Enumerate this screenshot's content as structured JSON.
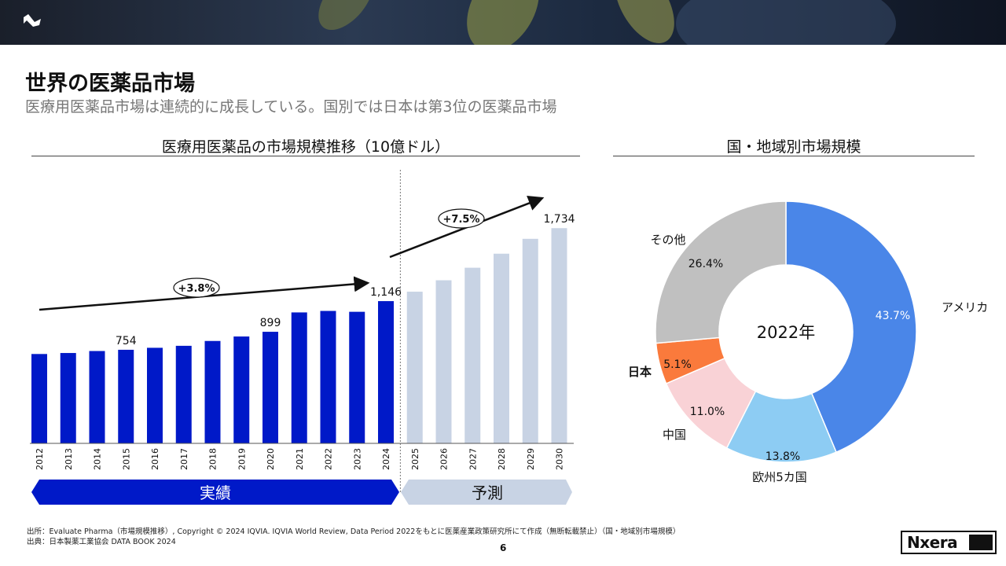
{
  "header": {
    "title": "世界の医薬品市場",
    "subtitle": "医療用医薬品市場は連続的に成長している。国別では日本は第3位の医薬品市場"
  },
  "left_chart_title": "医療用医薬品の市場規模推移（10億ドル）",
  "right_chart_title": "国・地域別市場規模",
  "colors": {
    "actual": "#0019c8",
    "forecast": "#c8d3e4",
    "usa": "#4a86e8",
    "europe": "#8dccf3",
    "china": "#f9d2d6",
    "japan": "#fa7a3c",
    "other": "#c0c0c0"
  },
  "chart_data": [
    {
      "type": "bar",
      "title": "医療用医薬品の市場規模推移（10億ドル）",
      "categories": [
        "2012",
        "2013",
        "2014",
        "2015",
        "2016",
        "2017",
        "2018",
        "2019",
        "2020",
        "2021",
        "2022",
        "2023",
        "2024",
        "2025",
        "2026",
        "2027",
        "2028",
        "2029",
        "2030"
      ],
      "values": [
        720,
        728,
        744,
        754,
        770,
        786,
        825,
        861,
        899,
        1055,
        1067,
        1060,
        1146,
        1222,
        1314,
        1415,
        1528,
        1648,
        1734
      ],
      "actual_count": 13,
      "ylim": [
        0,
        1900
      ],
      "data_labels": [
        {
          "index": 3,
          "text": "754"
        },
        {
          "index": 8,
          "text": "899"
        },
        {
          "index": 12,
          "text": "1,146"
        },
        {
          "index": 18,
          "text": "1,734"
        }
      ],
      "growth_labels": {
        "actual": "+3.8%",
        "forecast": "+7.5%"
      },
      "period_labels": {
        "actual": "実績",
        "forecast": "予測"
      }
    },
    {
      "type": "pie",
      "title": "国・地域別市場規模",
      "center_label": "2022年",
      "slices": [
        {
          "name": "アメリカ",
          "value": 43.7,
          "label": "43.7%",
          "color": "#4a86e8"
        },
        {
          "name": "欧州5カ国",
          "value": 13.8,
          "label": "13.8%",
          "color": "#8dccf3"
        },
        {
          "name": "中国",
          "value": 11.0,
          "label": "11.0%",
          "color": "#f9d2d6"
        },
        {
          "name": "日本",
          "value": 5.1,
          "label": "5.1%",
          "color": "#fa7a3c"
        },
        {
          "name": "その他",
          "value": 26.4,
          "label": "26.4%",
          "color": "#c0c0c0"
        }
      ]
    }
  ],
  "footer": {
    "source1": "出所：Evaluate Pharma（市場規模推移）, Copyright © 2024 IQVIA. IQVIA World Review, Data Period 2022をもとに医薬産業政策研究所にて作成（無断転載禁止）（国・地域別市場規模）",
    "source2": "出典：日本製薬工業協会 DATA BOOK 2024",
    "page": "6",
    "brand": "Nxera"
  }
}
